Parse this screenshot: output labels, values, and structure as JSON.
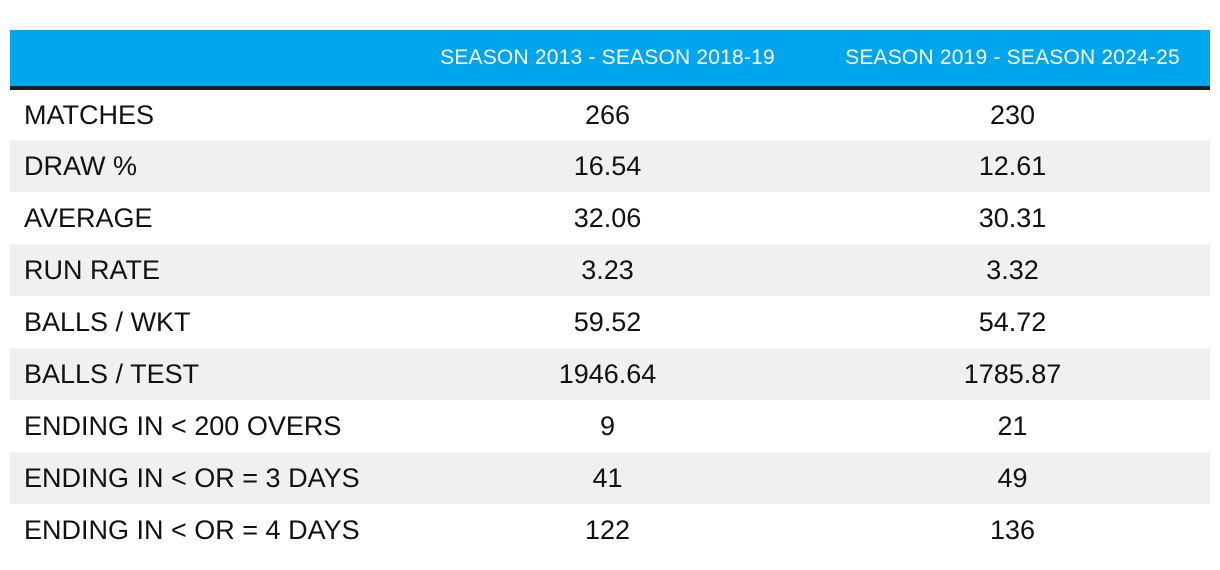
{
  "table": {
    "headers": [
      "",
      "SEASON 2013 - SEASON 2018-19",
      "SEASON 2019 - SEASON 2024-25"
    ],
    "rows": [
      {
        "label": "MATCHES",
        "v1": "266",
        "v2": "230"
      },
      {
        "label": "DRAW %",
        "v1": "16.54",
        "v2": "12.61"
      },
      {
        "label": "AVERAGE",
        "v1": "32.06",
        "v2": "30.31"
      },
      {
        "label": "RUN RATE",
        "v1": "3.23",
        "v2": "3.32"
      },
      {
        "label": "BALLS / WKT",
        "v1": "59.52",
        "v2": "54.72"
      },
      {
        "label": "BALLS / TEST",
        "v1": "1946.64",
        "v2": "1785.87"
      },
      {
        "label": "ENDING IN < 200 OVERS",
        "v1": "9",
        "v2": "21"
      },
      {
        "label": "ENDING IN < OR = 3 DAYS",
        "v1": "41",
        "v2": "49"
      },
      {
        "label": "ENDING IN < OR = 4 DAYS",
        "v1": "122",
        "v2": "136"
      }
    ]
  },
  "colors": {
    "header_bg": "#00a6ed",
    "header_text": "#ffffff",
    "stripe": "#f0f0f0",
    "header_rule": "#1e1e1e"
  }
}
